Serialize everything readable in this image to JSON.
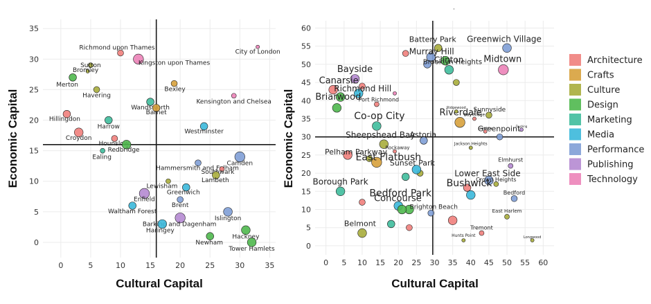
{
  "colors": {
    "Architecture": "#f07f7c",
    "Crafts": "#d7a13c",
    "Culture": "#a9ad3c",
    "Design": "#4fb84e",
    "Marketing": "#3fbd9c",
    "Media": "#3bb8da",
    "Performance": "#7f9fd6",
    "Publishing": "#b58ad2",
    "Technology": "#ec83b8"
  },
  "legend": {
    "placement": "right",
    "entries": [
      "Architecture",
      "Crafts",
      "Culture",
      "Design",
      "Marketing",
      "Media",
      "Performance",
      "Publishing",
      "Technology"
    ]
  },
  "stray_mark": "·",
  "chart_data": [
    {
      "type": "scatter",
      "xlabel": "Cultural Capital",
      "ylabel": "Economic Capital",
      "xlim": [
        -3,
        36
      ],
      "ylim": [
        -2.5,
        36.5
      ],
      "xticks": [
        0,
        5,
        10,
        15,
        20,
        25,
        30,
        35
      ],
      "yticks": [
        0,
        5,
        10,
        15,
        20,
        25,
        30,
        35
      ],
      "grid": true,
      "reference_lines": {
        "x": 16,
        "y": 16
      },
      "points": [
        {
          "label": "Richmond upon Thames",
          "x": 10,
          "y": 31,
          "category": "Architecture",
          "size": 3
        },
        {
          "label": "Kingston upon Thames",
          "x": 13,
          "y": 30,
          "category": "Technology",
          "size": 6
        },
        {
          "label": "Sutton",
          "x": 5,
          "y": 29,
          "category": "Culture",
          "size": 2
        },
        {
          "label": "Bromley",
          "x": 4.5,
          "y": 28,
          "category": "Culture",
          "size": 1
        },
        {
          "label": "Merton",
          "x": 2,
          "y": 27,
          "category": "Design",
          "size": 4
        },
        {
          "label": "Havering",
          "x": 6,
          "y": 25,
          "category": "Culture",
          "size": 3
        },
        {
          "label": "Bexley",
          "x": 19,
          "y": 26,
          "category": "Crafts",
          "size": 3
        },
        {
          "label": "City of London",
          "x": 33,
          "y": 32,
          "category": "Technology",
          "size": 1
        },
        {
          "label": "Kensington and Chelsea",
          "x": 29,
          "y": 24,
          "category": "Technology",
          "size": 2
        },
        {
          "label": "Wandsworth",
          "x": 15,
          "y": 23,
          "category": "Marketing",
          "size": 4
        },
        {
          "label": "Barnet",
          "x": 16,
          "y": 22,
          "category": "Crafts",
          "size": 4
        },
        {
          "label": "Hillingdon",
          "x": 1,
          "y": 21,
          "category": "Architecture",
          "size": 4
        },
        {
          "label": "Harrow",
          "x": 8,
          "y": 20,
          "category": "Marketing",
          "size": 4
        },
        {
          "label": "Westminster",
          "x": 24,
          "y": 19,
          "category": "Media",
          "size": 4
        },
        {
          "label": "Croydon",
          "x": 3,
          "y": 18,
          "category": "Architecture",
          "size": 5
        },
        {
          "label": "Hounslow",
          "x": 9,
          "y": 17,
          "category": "Architecture",
          "size": 3
        },
        {
          "label": "Redbridge",
          "x": 11,
          "y": 16,
          "category": "Design",
          "size": 5
        },
        {
          "label": "Ealing",
          "x": 7,
          "y": 15,
          "category": "Marketing",
          "size": 2
        },
        {
          "label": "Camden",
          "x": 30,
          "y": 14,
          "category": "Performance",
          "size": 6
        },
        {
          "label": "Hammersmith and Fulham",
          "x": 23,
          "y": 13,
          "category": "Performance",
          "size": 3
        },
        {
          "label": "Southwark",
          "x": 27,
          "y": 12,
          "category": "Architecture",
          "size": 2
        },
        {
          "label": "Lambeth",
          "x": 26,
          "y": 11,
          "category": "Culture",
          "size": 4
        },
        {
          "label": "Lewisham",
          "x": 18,
          "y": 10,
          "category": "Culture",
          "size": 2
        },
        {
          "label": "Greenwich",
          "x": 21,
          "y": 9,
          "category": "Media",
          "size": 4
        },
        {
          "label": "Enfield",
          "x": 14,
          "y": 8,
          "category": "Publishing",
          "size": 6
        },
        {
          "label": "Brent",
          "x": 20,
          "y": 7,
          "category": "Performance",
          "size": 3
        },
        {
          "label": "Waltham Forest",
          "x": 12,
          "y": 6,
          "category": "Media",
          "size": 4
        },
        {
          "label": "Islington",
          "x": 28,
          "y": 5,
          "category": "Performance",
          "size": 5
        },
        {
          "label": "Barking and Dagenham",
          "x": 20,
          "y": 4,
          "category": "Publishing",
          "size": 6
        },
        {
          "label": "Haringey",
          "x": 17,
          "y": 3,
          "category": "Media",
          "size": 5
        },
        {
          "label": "Hackney",
          "x": 31,
          "y": 2,
          "category": "Design",
          "size": 5
        },
        {
          "label": "Newham",
          "x": 25,
          "y": 1,
          "category": "Design",
          "size": 4
        },
        {
          "label": "Tower Hamlets",
          "x": 32,
          "y": 0,
          "category": "Design",
          "size": 5
        }
      ]
    },
    {
      "type": "scatter",
      "xlabel": "Cultural Capital",
      "ylabel": "Economic Capital",
      "xlim": [
        -3,
        63
      ],
      "ylim": [
        -2.5,
        62
      ],
      "xticks": [
        0,
        5,
        10,
        15,
        20,
        25,
        30,
        35,
        40,
        45,
        50,
        55,
        60
      ],
      "yticks": [
        0,
        5,
        10,
        15,
        20,
        25,
        30,
        35,
        40,
        45,
        50,
        55,
        60
      ],
      "grid": true,
      "reference_lines": {
        "x": 29.5,
        "y": 30
      },
      "points": [
        {
          "label": "Battery Park",
          "x": 31,
          "y": 54.5,
          "category": "Culture",
          "size": 4,
          "fs": 11
        },
        {
          "label": "Murray Hill",
          "x": 29,
          "y": 52,
          "category": "Performance",
          "size": 5,
          "fs": 12
        },
        {
          "label": "Greenwich Village",
          "x": 50,
          "y": 54.5,
          "category": "Performance",
          "size": 5,
          "fs": 12
        },
        {
          "label": "Clinton",
          "x": 33,
          "y": 51,
          "category": "Design",
          "size": 5,
          "fs": 12
        },
        {
          "label": "Midtown",
          "x": 49,
          "y": 48.5,
          "category": "Technology",
          "size": 6,
          "fs": 13
        },
        {
          "label": "Brooklyn Heights",
          "x": 34,
          "y": 48.5,
          "category": "Marketing",
          "size": 5,
          "fs": 10
        },
        {
          "label": "Bayside",
          "x": 8,
          "y": 46,
          "category": "Publishing",
          "size": 5,
          "fs": 13
        },
        {
          "label": "Canarsie",
          "x": 2,
          "y": 43,
          "category": "Architecture",
          "size": 5,
          "fs": 13
        },
        {
          "label": "Richmond Hill",
          "x": 9,
          "y": 42,
          "category": "Media",
          "size": 5,
          "fs": 12
        },
        {
          "label": "Port Richmond",
          "x": 14,
          "y": 39,
          "category": "Architecture",
          "size": 2,
          "fs": 8
        },
        {
          "label": "Briarwood",
          "x": 3,
          "y": 38,
          "category": "Design",
          "size": 5,
          "fs": 13
        },
        {
          "label": "Sunnyside",
          "x": 45,
          "y": 36,
          "category": "Culture",
          "size": 3,
          "fs": 9
        },
        {
          "label": "Riverdale",
          "x": 37,
          "y": 34,
          "category": "Crafts",
          "size": 6,
          "fs": 13
        },
        {
          "label": "Co-op City",
          "x": 14,
          "y": 33,
          "category": "Marketing",
          "size": 5,
          "fs": 14
        },
        {
          "label": "Astoria",
          "x": 27,
          "y": 29,
          "category": "Performance",
          "size": 4,
          "fs": 11
        },
        {
          "label": "Greenpoint",
          "x": 48,
          "y": 30,
          "category": "Performance",
          "size": 3,
          "fs": 11
        },
        {
          "label": "Sheepshead Bay",
          "x": 16,
          "y": 28,
          "category": "Culture",
          "size": 5,
          "fs": 12
        },
        {
          "label": "Rockaway",
          "x": 19,
          "y": 26,
          "category": "Architecture",
          "size": 1,
          "fs": 7
        },
        {
          "label": "Jackson Heights",
          "x": 40,
          "y": 27,
          "category": "Culture",
          "size": 1,
          "fs": 6
        },
        {
          "label": "Pelham Parkway",
          "x": 6,
          "y": 25,
          "category": "Architecture",
          "size": 5,
          "fs": 11
        },
        {
          "label": "East Flatbush",
          "x": 14,
          "y": 23,
          "category": "Crafts",
          "size": 6,
          "fs": 14
        },
        {
          "label": "Elmhurst",
          "x": 51,
          "y": 22,
          "category": "Publishing",
          "size": 2,
          "fs": 8
        },
        {
          "label": "Sunset Park",
          "x": 25,
          "y": 21,
          "category": "Media",
          "size": 5,
          "fs": 11
        },
        {
          "label": "Lower East Side",
          "x": 45,
          "y": 18,
          "category": "Performance",
          "size": 5,
          "fs": 12
        },
        {
          "label": "Crown Heights",
          "x": 47,
          "y": 17,
          "category": "Culture",
          "size": 2,
          "fs": 8
        },
        {
          "label": "Bushwick",
          "x": 39,
          "y": 16,
          "category": "Architecture",
          "size": 4,
          "fs": 14
        },
        {
          "label": "Borough Park",
          "x": 4,
          "y": 15,
          "category": "Marketing",
          "size": 5,
          "fs": 12
        },
        {
          "label": "Bedford",
          "x": 52,
          "y": 13,
          "category": "Performance",
          "size": 3,
          "fs": 8
        },
        {
          "label": "Bedford Park",
          "x": 20,
          "y": 11,
          "category": "Media",
          "size": 5,
          "fs": 14
        },
        {
          "label": "Brighton Beach",
          "x": 29,
          "y": 9,
          "category": "Performance",
          "size": 3,
          "fs": 9
        },
        {
          "label": "East Harlem",
          "x": 50,
          "y": 8,
          "category": "Culture",
          "size": 2,
          "fs": 7
        },
        {
          "label": "Concourse",
          "x": 21,
          "y": 10,
          "category": "Design",
          "size": 5,
          "fs": 13
        },
        {
          "label": "Belmont",
          "x": 10,
          "y": 3.5,
          "category": "Culture",
          "size": 5,
          "fs": 11
        },
        {
          "label": "Tremont",
          "x": 43,
          "y": 3.5,
          "category": "Architecture",
          "size": 2,
          "fs": 8
        },
        {
          "label": "Hunts Point",
          "x": 38,
          "y": 1.5,
          "category": "Culture",
          "size": 1,
          "fs": 6
        },
        {
          "label": "Longwood",
          "x": 57,
          "y": 1.5,
          "category": "Culture",
          "size": 1,
          "fs": 5
        },
        {
          "label": "Ridgewood",
          "x": 36,
          "y": 37,
          "category": "Culture",
          "size": 1,
          "fs": 5
        },
        {
          "label": "Bay Ridge",
          "x": 41,
          "y": 35,
          "category": "Architecture",
          "size": 1,
          "fs": 6
        },
        {
          "label": "Jamaica",
          "x": 44,
          "y": 31.5,
          "category": "Architecture",
          "size": 1,
          "fs": 5
        },
        {
          "label": "Flushing",
          "x": 54,
          "y": 32,
          "category": "Publishing",
          "size": 1,
          "fs": 4
        }
      ],
      "unlabeled_points": [
        {
          "x": 22,
          "y": 53,
          "category": "Architecture",
          "size": 3
        },
        {
          "x": 28,
          "y": 50,
          "category": "Performance",
          "size": 4
        },
        {
          "x": 36,
          "y": 45,
          "category": "Culture",
          "size": 3
        },
        {
          "x": 4,
          "y": 41,
          "category": "Design",
          "size": 5
        },
        {
          "x": 10,
          "y": 44,
          "category": "Architecture",
          "size": 3
        },
        {
          "x": 19,
          "y": 42,
          "category": "Technology",
          "size": 1
        },
        {
          "x": 12,
          "y": 24,
          "category": "Culture",
          "size": 3
        },
        {
          "x": 26,
          "y": 20,
          "category": "Culture",
          "size": 3
        },
        {
          "x": 22,
          "y": 19,
          "category": "Marketing",
          "size": 4
        },
        {
          "x": 10,
          "y": 12,
          "category": "Architecture",
          "size": 3
        },
        {
          "x": 23,
          "y": 10,
          "category": "Design",
          "size": 5
        },
        {
          "x": 40,
          "y": 14,
          "category": "Media",
          "size": 5
        },
        {
          "x": 35,
          "y": 7,
          "category": "Architecture",
          "size": 5
        },
        {
          "x": 18,
          "y": 6,
          "category": "Marketing",
          "size": 4
        },
        {
          "x": 23,
          "y": 5,
          "category": "Architecture",
          "size": 3
        }
      ]
    }
  ]
}
